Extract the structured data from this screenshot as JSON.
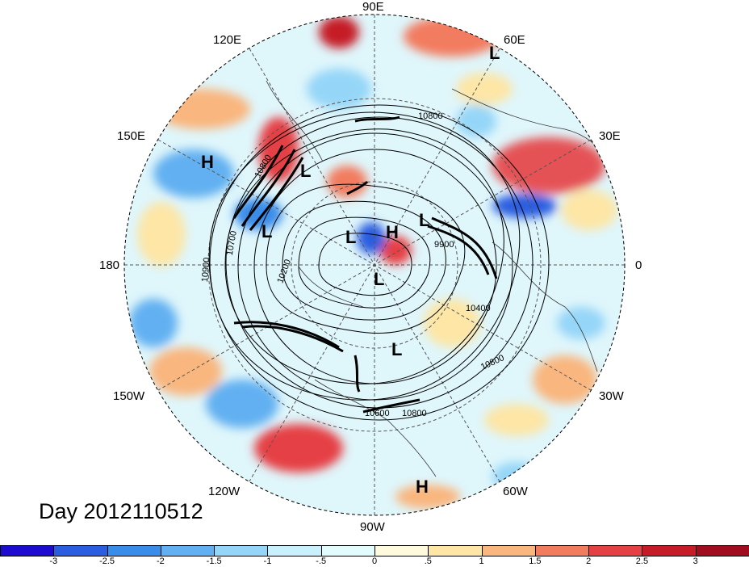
{
  "title": "Day 2012110512",
  "longitude_labels": {
    "e90": "90E",
    "e60": "60E",
    "e30": "30E",
    "zero": "0",
    "w30": "30W",
    "w60": "60W",
    "w90": "90W",
    "w120": "120W",
    "w150": "150W",
    "lon180": "180",
    "e150": "150E",
    "e120": "120E"
  },
  "centers": [
    "H",
    "L",
    "L",
    "L",
    "L",
    "H",
    "L",
    "L",
    "L",
    "H"
  ],
  "contour_labels": [
    "10800",
    "10800",
    "10700",
    "10900",
    "10200",
    "9900",
    "10400",
    "10800",
    "10800",
    "10600"
  ],
  "colorbar": {
    "ticks": [
      "-3",
      "-2.5",
      "-2",
      "-1.5",
      "-1",
      "-.5",
      "0",
      ".5",
      "1",
      "1.5",
      "2",
      "2.5",
      "3"
    ],
    "colors": [
      "#1e0bd0",
      "#2a5de0",
      "#3a8ce9",
      "#62b0f1",
      "#95d6f8",
      "#c9f1fd",
      "#e2fcfe",
      "#fefbdc",
      "#fde6a6",
      "#f9b67e",
      "#f27c5e",
      "#e54144",
      "#c51c27",
      "#a10d1e"
    ]
  },
  "map_colors": {
    "background": "#dff6fb",
    "grid": "#555555",
    "contour": "#000000"
  }
}
